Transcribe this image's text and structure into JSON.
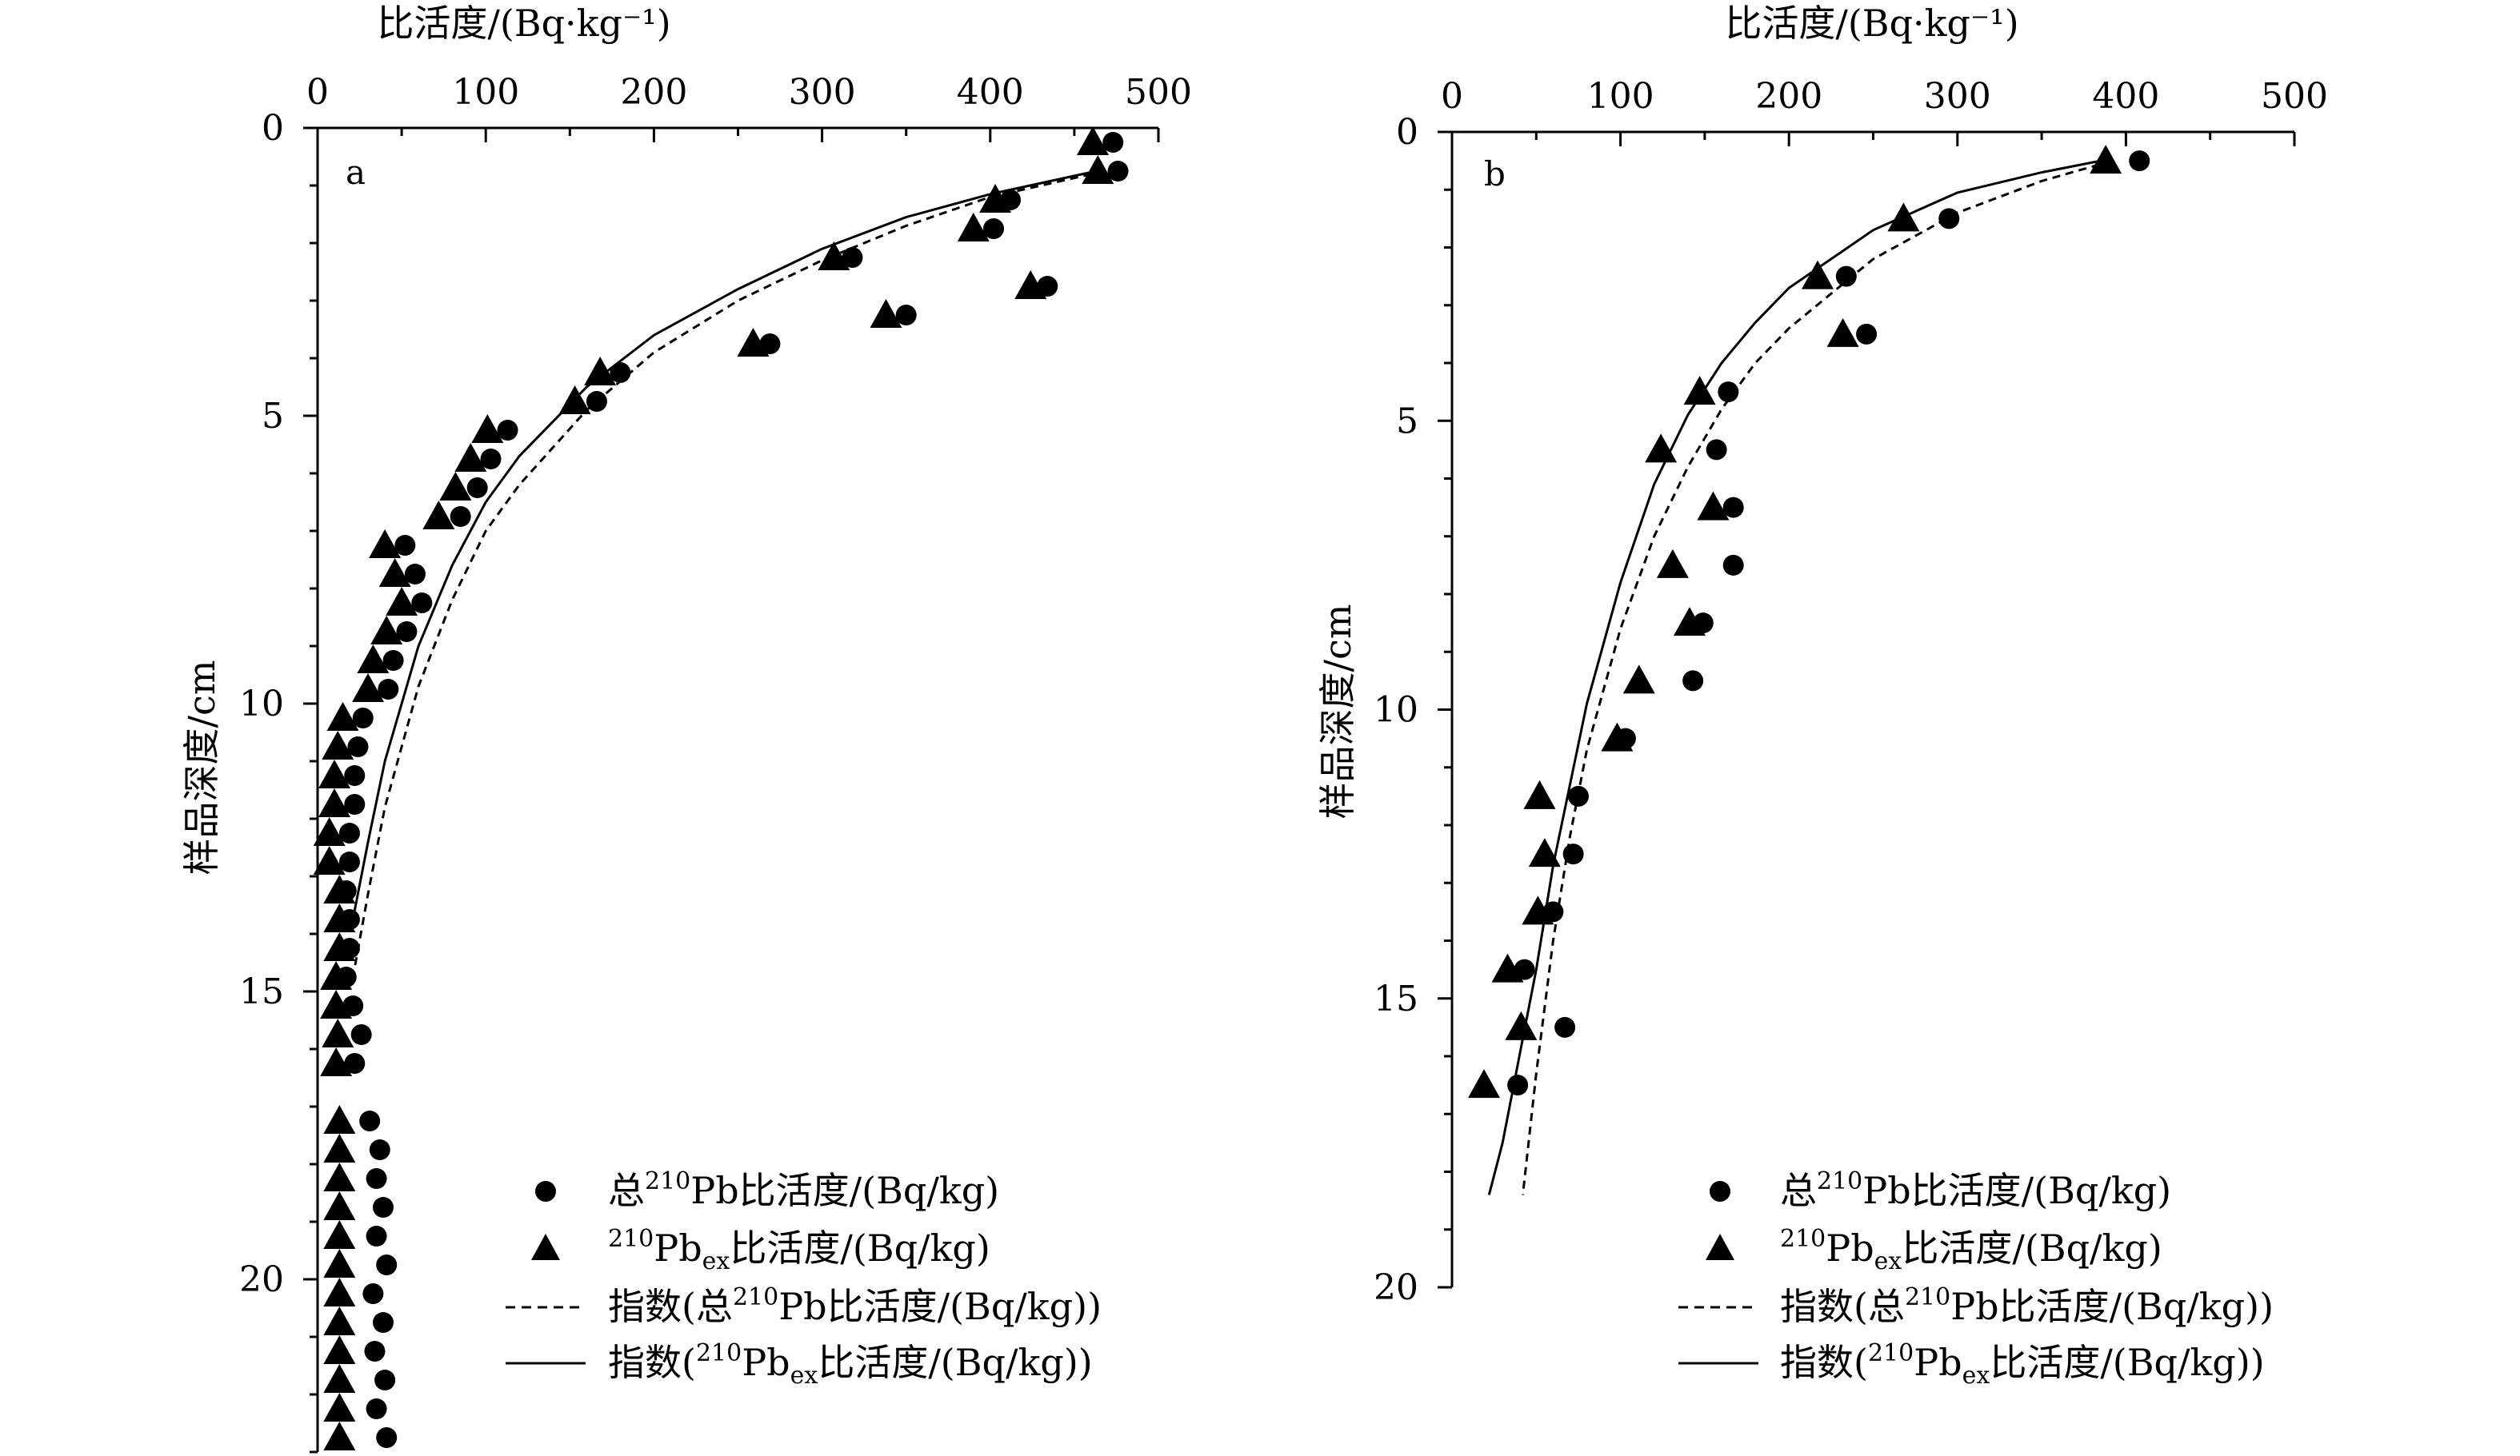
{
  "legend": {
    "total": {
      "pre": "总",
      "sup": "210",
      "mid": "Pb比活度/(Bq/kg)"
    },
    "ex": {
      "sup": "210",
      "mid": "Pb",
      "sub": "ex",
      "post": "比活度/(Bq/kg)"
    },
    "fit_total": {
      "pre": "指数(总",
      "sup": "210",
      "mid": "Pb比活度/(Bq/kg))"
    },
    "fit_ex": {
      "pre": "指数(",
      "sup": "210",
      "mid": "Pb",
      "sub": "ex",
      "post": "比活度/(Bq/kg))"
    }
  },
  "chart_data": [
    {
      "type": "scatter",
      "panel_label": "a",
      "xlabel": "比活度/(Bq·kg⁻¹)",
      "ylabel": "样品深度/cm",
      "xlim": [
        0,
        500
      ],
      "ylim": [
        0,
        23
      ],
      "y_inverted": true,
      "x_axis_position": "top",
      "xticks": [
        0,
        100,
        200,
        300,
        400,
        500
      ],
      "yticks": [
        0,
        5,
        10,
        15,
        20
      ],
      "grid": false,
      "legend_position": "bottom-right",
      "series": [
        {
          "name": "总210Pb比活度/(Bq/kg)",
          "marker": "circle",
          "points": [
            [
              473,
              0.25
            ],
            [
              476,
              0.75
            ],
            [
              412,
              1.25
            ],
            [
              402,
              1.75
            ],
            [
              318,
              2.25
            ],
            [
              434,
              2.75
            ],
            [
              269,
              3.75
            ],
            [
              350,
              3.25
            ],
            [
              180,
              4.25
            ],
            [
              166,
              4.75
            ],
            [
              113,
              5.25
            ],
            [
              103,
              5.75
            ],
            [
              95,
              6.25
            ],
            [
              85,
              6.75
            ],
            [
              52,
              7.25
            ],
            [
              58,
              7.75
            ],
            [
              62,
              8.25
            ],
            [
              53,
              8.75
            ],
            [
              45,
              9.25
            ],
            [
              42,
              9.75
            ],
            [
              27,
              10.25
            ],
            [
              24,
              10.75
            ],
            [
              22,
              11.25
            ],
            [
              22,
              11.75
            ],
            [
              19,
              12.25
            ],
            [
              19,
              12.75
            ],
            [
              17,
              13.25
            ],
            [
              19,
              13.75
            ],
            [
              19,
              14.25
            ],
            [
              17,
              14.75
            ],
            [
              21,
              15.25
            ],
            [
              26,
              15.75
            ],
            [
              22,
              16.25
            ],
            [
              31,
              17.25
            ],
            [
              37,
              17.75
            ],
            [
              35,
              18.25
            ],
            [
              39,
              18.75
            ],
            [
              35,
              19.25
            ],
            [
              41,
              19.75
            ],
            [
              33,
              20.25
            ],
            [
              39,
              20.75
            ],
            [
              34,
              21.25
            ],
            [
              40,
              21.75
            ],
            [
              35,
              22.25
            ],
            [
              41,
              22.75
            ]
          ]
        },
        {
          "name": "210Pbex比活度/(Bq/kg)",
          "marker": "triangle",
          "points": [
            [
              461,
              0.25
            ],
            [
              464,
              0.75
            ],
            [
              403,
              1.25
            ],
            [
              390,
              1.75
            ],
            [
              307,
              2.25
            ],
            [
              424,
              2.75
            ],
            [
              259,
              3.75
            ],
            [
              338,
              3.25
            ],
            [
              168,
              4.25
            ],
            [
              153,
              4.75
            ],
            [
              101,
              5.25
            ],
            [
              91,
              5.75
            ],
            [
              82,
              6.25
            ],
            [
              72,
              6.75
            ],
            [
              40,
              7.25
            ],
            [
              46,
              7.75
            ],
            [
              50,
              8.25
            ],
            [
              41,
              8.75
            ],
            [
              33,
              9.25
            ],
            [
              30,
              9.75
            ],
            [
              15,
              10.25
            ],
            [
              12,
              10.75
            ],
            [
              10,
              11.25
            ],
            [
              10,
              11.75
            ],
            [
              7,
              12.25
            ],
            [
              7,
              12.75
            ],
            [
              13,
              13.25
            ],
            [
              13,
              13.75
            ],
            [
              13,
              14.25
            ],
            [
              11,
              14.75
            ],
            [
              11,
              15.25
            ],
            [
              12,
              15.75
            ],
            [
              11,
              16.25
            ],
            [
              13,
              17.25
            ],
            [
              13,
              17.75
            ],
            [
              13,
              18.25
            ],
            [
              13,
              18.75
            ],
            [
              13,
              19.25
            ],
            [
              13,
              19.75
            ],
            [
              13,
              20.25
            ],
            [
              13,
              20.75
            ],
            [
              13,
              21.25
            ],
            [
              13,
              21.75
            ],
            [
              13,
              22.25
            ],
            [
              13,
              22.75
            ]
          ]
        },
        {
          "name": "指数(总210Pb比活度/(Bq/kg))",
          "type": "line",
          "style": "dashed",
          "points": [
            [
              468,
              0.75
            ],
            [
              400,
              1.2
            ],
            [
              350,
              1.7
            ],
            [
              300,
              2.3
            ],
            [
              250,
              3.0
            ],
            [
              200,
              3.9
            ],
            [
              160,
              4.9
            ],
            [
              120,
              6.2
            ],
            [
              100,
              7.0
            ],
            [
              80,
              8.2
            ],
            [
              60,
              9.7
            ],
            [
              40,
              11.8
            ],
            [
              30,
              13.3
            ],
            [
              22,
              14.6
            ]
          ]
        },
        {
          "name": "指数(210Pbex比活度/(Bq/kg))",
          "type": "line",
          "style": "solid",
          "points": [
            [
              463,
              0.75
            ],
            [
              400,
              1.15
            ],
            [
              350,
              1.55
            ],
            [
              300,
              2.1
            ],
            [
              250,
              2.8
            ],
            [
              200,
              3.6
            ],
            [
              160,
              4.5
            ],
            [
              120,
              5.7
            ],
            [
              100,
              6.5
            ],
            [
              80,
              7.6
            ],
            [
              60,
              9.0
            ],
            [
              40,
              11.0
            ],
            [
              30,
              12.4
            ],
            [
              22,
              13.6
            ]
          ]
        }
      ]
    },
    {
      "type": "scatter",
      "panel_label": "b",
      "xlabel": "比活度/(Bq·kg⁻¹)",
      "ylabel": "样品深度/cm",
      "xlim": [
        0,
        500
      ],
      "ylim": [
        0,
        20
      ],
      "y_inverted": true,
      "x_axis_position": "top",
      "xticks": [
        0,
        100,
        200,
        300,
        400,
        500
      ],
      "yticks": [
        0,
        5,
        10,
        15,
        20
      ],
      "grid": false,
      "legend_position": "bottom-right",
      "series": [
        {
          "name": "总210Pb比活度/(Bq/kg)",
          "marker": "circle",
          "points": [
            [
              408,
              0.5
            ],
            [
              295,
              1.5
            ],
            [
              234,
              2.5
            ],
            [
              246,
              3.5
            ],
            [
              164,
              4.5
            ],
            [
              157,
              5.5
            ],
            [
              167,
              6.5
            ],
            [
              167,
              7.5
            ],
            [
              149,
              8.5
            ],
            [
              143,
              9.5
            ],
            [
              103,
              10.5
            ],
            [
              75,
              11.5
            ],
            [
              72,
              12.5
            ],
            [
              60,
              13.5
            ],
            [
              43,
              14.5
            ],
            [
              67,
              15.5
            ],
            [
              39,
              16.5
            ]
          ]
        },
        {
          "name": "210Pbex比活度/(Bq/kg)",
          "marker": "triangle",
          "points": [
            [
              388,
              0.5
            ],
            [
              268,
              1.5
            ],
            [
              217,
              2.5
            ],
            [
              232,
              3.5
            ],
            [
              147,
              4.5
            ],
            [
              124,
              5.5
            ],
            [
              155,
              6.5
            ],
            [
              131,
              7.5
            ],
            [
              141,
              8.5
            ],
            [
              111,
              9.5
            ],
            [
              98,
              10.5
            ],
            [
              52,
              11.5
            ],
            [
              55,
              12.5
            ],
            [
              51,
              13.5
            ],
            [
              33,
              14.5
            ],
            [
              41,
              15.5
            ],
            [
              19,
              16.5
            ]
          ]
        },
        {
          "name": "指数(总210Pb比活度/(Bq/kg))",
          "type": "line",
          "style": "dashed",
          "points": [
            [
              392,
              0.5
            ],
            [
              350,
              0.85
            ],
            [
              300,
              1.4
            ],
            [
              250,
              2.2
            ],
            [
              200,
              3.4
            ],
            [
              180,
              4.0
            ],
            [
              160,
              4.8
            ],
            [
              140,
              5.8
            ],
            [
              120,
              7.0
            ],
            [
              100,
              8.6
            ],
            [
              80,
              10.7
            ],
            [
              70,
              12.2
            ],
            [
              60,
              14.0
            ],
            [
              50,
              16.3
            ],
            [
              42,
              18.4
            ]
          ]
        },
        {
          "name": "指数(210Pbex比活度/(Bq/kg))",
          "type": "line",
          "style": "solid",
          "points": [
            [
              385,
              0.5
            ],
            [
              350,
              0.7
            ],
            [
              300,
              1.05
            ],
            [
              250,
              1.7
            ],
            [
              200,
              2.7
            ],
            [
              180,
              3.3
            ],
            [
              160,
              4.0
            ],
            [
              140,
              4.9
            ],
            [
              120,
              6.1
            ],
            [
              100,
              7.8
            ],
            [
              80,
              9.9
            ],
            [
              60,
              12.7
            ],
            [
              50,
              14.5
            ],
            [
              40,
              16.0
            ],
            [
              30,
              17.5
            ],
            [
              22,
              18.4
            ]
          ]
        }
      ]
    }
  ]
}
